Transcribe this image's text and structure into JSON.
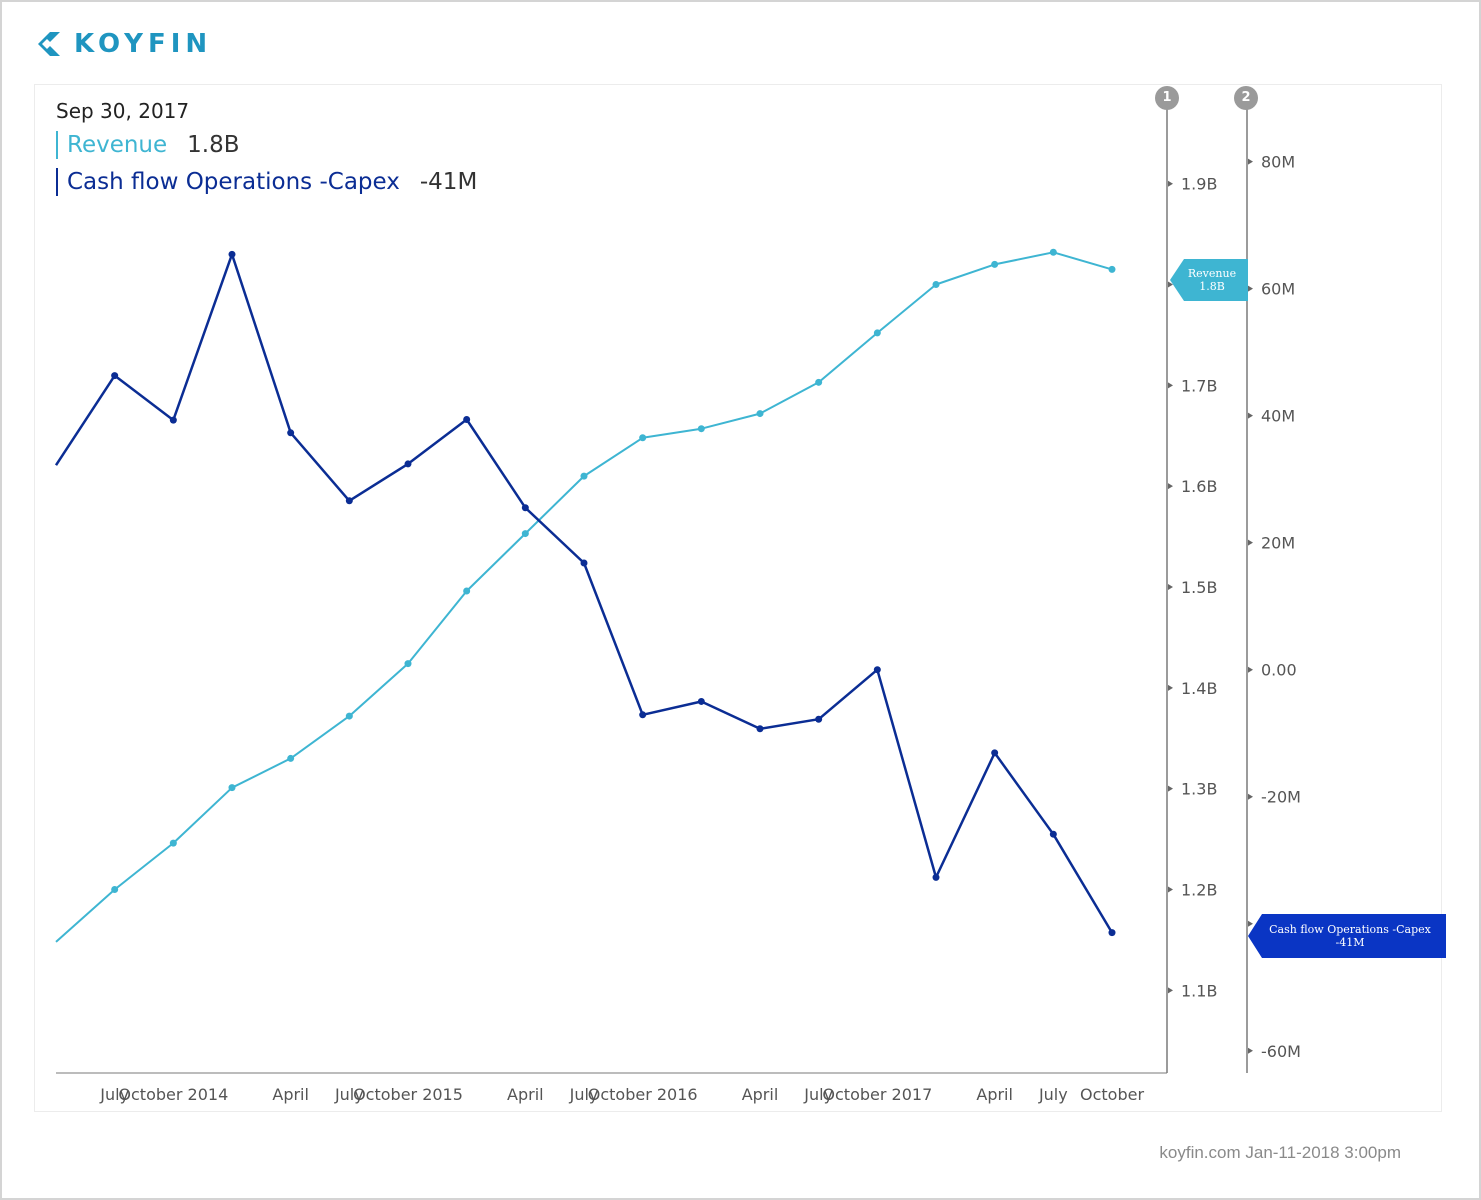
{
  "brand": {
    "name": "KOYFIN",
    "logo_icon": "koyfin-logo-icon",
    "color": "#1f95c0"
  },
  "legend": {
    "date": "Sep 30, 2017",
    "revenue": {
      "label": "Revenue",
      "value": "1.8B"
    },
    "cashflow": {
      "label": "Cash flow Operations -Capex",
      "value": "-41M"
    }
  },
  "axis_badges": {
    "left": "1",
    "right": "2"
  },
  "flags": {
    "revenue": {
      "line1": "Revenue",
      "line2": "1.8B"
    },
    "cashflow": {
      "line1": "Cash flow Operations -Capex",
      "line2": "-41M"
    }
  },
  "footer": "koyfin.com Jan-11-2018 3:00pm",
  "colors": {
    "revenue": "#3eb5d2",
    "cashflow": "#0b2d94",
    "cashflow_flag": "#0a35c4",
    "axis": "#888888",
    "tick_text": "#555555"
  },
  "chart_data": {
    "type": "line",
    "x_labels": [
      "July",
      "October 2014",
      "April",
      "July",
      "October 2015",
      "April",
      "July",
      "October 2016",
      "April",
      "July",
      "October 2017",
      "April",
      "July",
      "October"
    ],
    "x_label_positions": [
      1,
      2,
      4,
      5,
      6,
      8,
      9,
      10,
      12,
      13,
      14,
      16,
      17,
      18
    ],
    "x_range": [
      0,
      18
    ],
    "series": [
      {
        "name": "Revenue",
        "axis": "1",
        "x": [
          0,
          1,
          2,
          3,
          4,
          5,
          6,
          7,
          8,
          9,
          10,
          11,
          12,
          13,
          14,
          15,
          16,
          17,
          18
        ],
        "values": [
          1.148,
          1.2,
          1.246,
          1.301,
          1.33,
          1.372,
          1.424,
          1.496,
          1.553,
          1.61,
          1.648,
          1.657,
          1.672,
          1.703,
          1.752,
          1.8,
          1.82,
          1.832,
          1.815
        ],
        "markers": [
          false,
          true,
          true,
          true,
          true,
          true,
          true,
          true,
          true,
          true,
          true,
          true,
          true,
          true,
          true,
          true,
          true,
          true,
          true
        ]
      },
      {
        "name": "Cash flow Operations -Capex",
        "axis": "2",
        "x": [
          0,
          1,
          2,
          3,
          4,
          5,
          6,
          7,
          8,
          9,
          10,
          11,
          12,
          13,
          14,
          15,
          16,
          17,
          18
        ],
        "values": [
          32.2,
          46.3,
          39.3,
          65.4,
          37.3,
          26.6,
          32.4,
          39.4,
          25.5,
          16.8,
          -7.1,
          -5.0,
          -9.3,
          -7.8,
          0.0,
          -32.7,
          -13.1,
          -25.9,
          -41.4
        ],
        "markers": [
          false,
          true,
          true,
          true,
          true,
          true,
          true,
          true,
          true,
          true,
          true,
          true,
          true,
          true,
          true,
          true,
          true,
          true,
          true
        ]
      }
    ],
    "y_axis_1": {
      "ticks": [
        1.1,
        1.2,
        1.3,
        1.4,
        1.5,
        1.6,
        1.7,
        1.8,
        1.9
      ],
      "tick_labels": [
        "1.1B",
        "1.2B",
        "1.3B",
        "1.4B",
        "1.5B",
        "1.6B",
        "1.7B",
        "",
        "1.9B"
      ],
      "range": [
        1.018,
        1.983
      ]
    },
    "y_axis_2": {
      "ticks": [
        -60,
        -40,
        -20,
        0,
        20,
        40,
        60,
        80
      ],
      "tick_labels": [
        "-60M",
        "",
        "-20M",
        "0.00",
        "20M",
        "40M",
        "60M",
        "80M"
      ],
      "range": [
        -63.5,
        89.7
      ]
    },
    "grid": false
  }
}
